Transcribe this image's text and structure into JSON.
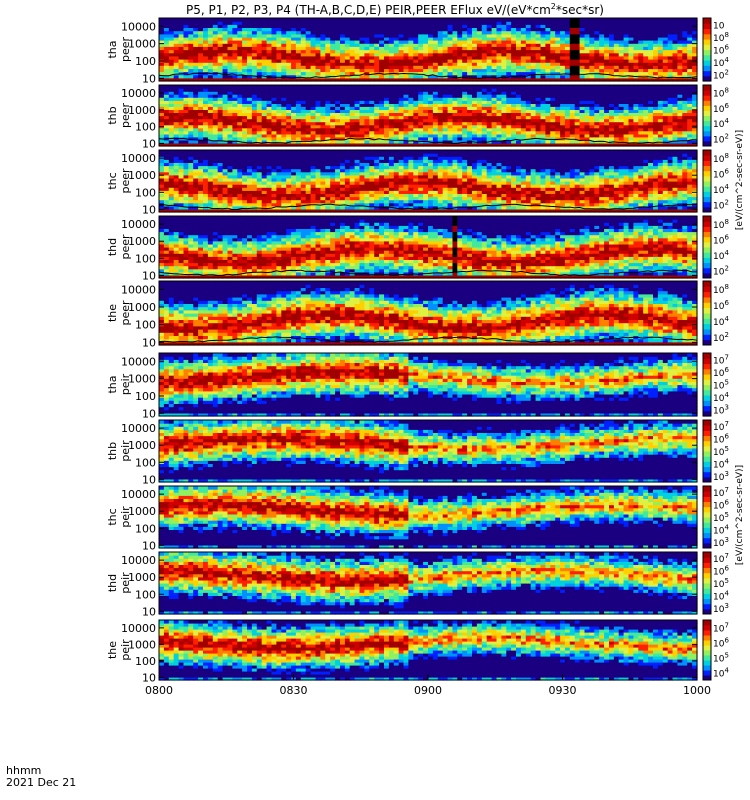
{
  "title": "P5, P1, P2, P3, P4 (TH-A,B,C,D,E) PEIR,PEER EFlux eV/(eV*cm2*sec*sr)",
  "title_parts": {
    "pre": "P5, P1, P2, P3, P4 (TH-A,B,C,D,E) PEIR,PEER EFlux eV/(eV*cm",
    "sup": "2",
    "post": "*sec*sr)"
  },
  "footer": {
    "time_format": "hhmm",
    "date": "2021 Dec 21"
  },
  "colorbar_units": {
    "electron": "[eV/(cm^2-sec-sr-eV)]",
    "ion": "[eV/(cm^2-sec-sr-eV)]"
  },
  "chart_data": {
    "type": "heatmap",
    "x_ticks": [
      "0800",
      "0830",
      "0900",
      "0930",
      "1000"
    ],
    "x_range_minutes": [
      0,
      120
    ],
    "y_ticks": [
      "10",
      "100",
      "1000",
      "10000"
    ],
    "y_scale": "log",
    "y_range_eV": [
      7,
      30000
    ],
    "panels": [
      {
        "label_1": "tha",
        "label_2": "peer",
        "species": "electron",
        "cbar_ticks": [
          "10",
          "10",
          "10",
          "10",
          "10"
        ],
        "cbar_exps": [
          "2",
          "4",
          "6",
          "8",
          ""
        ],
        "gaps": [
          [
            91.5,
            93.5
          ]
        ]
      },
      {
        "label_1": "thb",
        "label_2": "peer",
        "species": "electron",
        "cbar_ticks": [
          "10",
          "10",
          "10",
          "10"
        ],
        "cbar_exps": [
          "2",
          "4",
          "6",
          "8"
        ],
        "gaps": []
      },
      {
        "label_1": "thc",
        "label_2": "peer",
        "species": "electron",
        "cbar_ticks": [
          "10",
          "10",
          "10",
          "10"
        ],
        "cbar_exps": [
          "2",
          "4",
          "6",
          "8"
        ],
        "gaps": []
      },
      {
        "label_1": "thd",
        "label_2": "peer",
        "species": "electron",
        "cbar_ticks": [
          "10",
          "10",
          "10",
          "10"
        ],
        "cbar_exps": [
          "2",
          "4",
          "6",
          "8"
        ],
        "gaps": [
          [
            64.5,
            66.5
          ]
        ]
      },
      {
        "label_1": "the",
        "label_2": "peer",
        "species": "electron",
        "cbar_ticks": [
          "10",
          "10",
          "10",
          "10"
        ],
        "cbar_exps": [
          "2",
          "4",
          "6",
          "8"
        ],
        "gaps": []
      },
      {
        "label_1": "tha",
        "label_2": "peir",
        "species": "ion",
        "cbar_ticks": [
          "10",
          "10",
          "10",
          "10",
          "10"
        ],
        "cbar_exps": [
          "3",
          "4",
          "5",
          "6",
          "7"
        ],
        "gaps": []
      },
      {
        "label_1": "thb",
        "label_2": "peir",
        "species": "ion",
        "cbar_ticks": [
          "10",
          "10",
          "10",
          "10",
          "10"
        ],
        "cbar_exps": [
          "3",
          "4",
          "5",
          "6",
          "7"
        ],
        "gaps": []
      },
      {
        "label_1": "thc",
        "label_2": "peir",
        "species": "ion",
        "cbar_ticks": [
          "10",
          "10",
          "10",
          "10",
          "10"
        ],
        "cbar_exps": [
          "3",
          "4",
          "5",
          "6",
          "7"
        ],
        "gaps": []
      },
      {
        "label_1": "thd",
        "label_2": "peir",
        "species": "ion",
        "cbar_ticks": [
          "10",
          "10",
          "10",
          "10",
          "10"
        ],
        "cbar_exps": [
          "3",
          "4",
          "5",
          "6",
          "7"
        ],
        "gaps": []
      },
      {
        "label_1": "the",
        "label_2": "peir",
        "species": "ion",
        "cbar_ticks": [
          "10",
          "10",
          "10",
          "10"
        ],
        "cbar_exps": [
          "4",
          "5",
          "6",
          "7"
        ],
        "gaps": []
      }
    ],
    "colormap": [
      "#1a0080",
      "#0020ff",
      "#0090ff",
      "#00d0e0",
      "#40e8a0",
      "#90f060",
      "#e0f040",
      "#ffd000",
      "#ff8000",
      "#ff2000",
      "#d00000",
      "#a00000"
    ]
  }
}
